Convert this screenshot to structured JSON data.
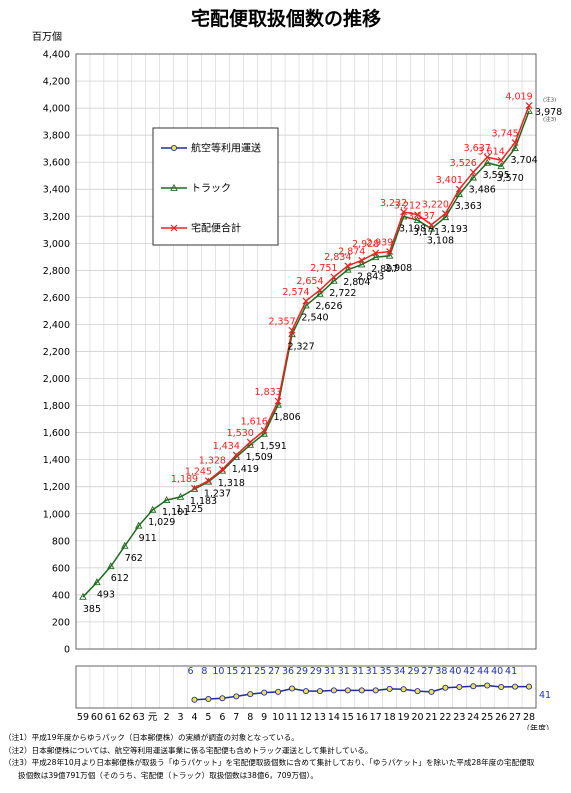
{
  "chart_data": {
    "type": "line",
    "title": "宅配便取扱個数の推移",
    "ylabel": "百万個",
    "xlabel": "（年度）",
    "ylim": [
      0,
      4400
    ],
    "y_ticks": [
      0,
      200,
      400,
      600,
      800,
      1000,
      1200,
      1400,
      1600,
      1800,
      2000,
      2200,
      2400,
      2600,
      2800,
      3000,
      3200,
      3400,
      3600,
      3800,
      4000,
      4200,
      4400
    ],
    "y_tick_labels": [
      "0",
      "200",
      "400",
      "600",
      "800",
      "1,000",
      "1,200",
      "1,400",
      "1,600",
      "1,800",
      "2,000",
      "2,200",
      "2,400",
      "2,600",
      "2,800",
      "3,000",
      "3,200",
      "3,400",
      "3,600",
      "3,800",
      "4,000",
      "4,200",
      "4,400"
    ],
    "categories": [
      "59",
      "60",
      "61",
      "62",
      "63",
      "元",
      "2",
      "3",
      "4",
      "5",
      "6",
      "7",
      "8",
      "9",
      "10",
      "11",
      "12",
      "13",
      "14",
      "15",
      "16",
      "17",
      "18",
      "19",
      "20",
      "21",
      "22",
      "23",
      "24",
      "25",
      "26",
      "27",
      "28"
    ],
    "grid": true,
    "legend_position": "top-left",
    "series": [
      {
        "name": "航空等利用運送",
        "color": "#1f2d9e",
        "marker": "circle",
        "values": [
          null,
          null,
          null,
          null,
          null,
          null,
          null,
          null,
          6,
          8,
          10,
          15,
          21,
          25,
          27,
          36,
          29,
          29,
          31,
          31,
          31,
          31,
          35,
          34,
          29,
          27,
          38,
          40,
          42,
          44,
          40,
          41,
          41
        ],
        "labels": [
          "",
          "",
          "",
          "",
          "",
          "",
          "",
          "",
          "6",
          "8",
          "10",
          "15",
          "21",
          "25",
          "27",
          "36",
          "29",
          "29",
          "31",
          "31",
          "31",
          "31",
          "35",
          "34",
          "29",
          "27",
          "38",
          "40",
          "42",
          "44",
          "40",
          "41",
          ""
        ]
      },
      {
        "name": "トラック",
        "color": "#1e6a1e",
        "marker": "triangle",
        "values": [
          385,
          493,
          612,
          762,
          911,
          1029,
          1101,
          1125,
          1183,
          1237,
          1318,
          1419,
          1509,
          1591,
          1806,
          2327,
          2540,
          2626,
          2722,
          2804,
          2843,
          2897,
          2908,
          3198,
          3171,
          3108,
          3193,
          3363,
          3486,
          3595,
          3570,
          3704,
          3978
        ],
        "labels": [
          "385",
          "493",
          "612",
          "762",
          "911",
          "1,029",
          "1,101",
          "1,125",
          "1,183",
          "1,237",
          "1,318",
          "1,419",
          "1,509",
          "1,591",
          "1,806",
          "2,327",
          "2,540",
          "2,626",
          "2,722",
          "2,804",
          "2,843",
          "2,897",
          "2,908",
          "3,198",
          "3,171",
          "3,108",
          "3,193",
          "3,363",
          "3,486",
          "3,595",
          "3,570",
          "3,704",
          "3,978"
        ]
      },
      {
        "name": "宅配便合計",
        "color": "#ee2222",
        "marker": "x",
        "values": [
          null,
          null,
          null,
          null,
          null,
          null,
          null,
          null,
          1189,
          1245,
          1328,
          1434,
          1530,
          1616,
          1833,
          2357,
          2574,
          2654,
          2751,
          2834,
          2874,
          2928,
          2939,
          3232,
          3212,
          3137,
          3220,
          3401,
          3526,
          3637,
          3614,
          3745,
          4019
        ],
        "labels": [
          "",
          "",
          "",
          "",
          "",
          "",
          "",
          "",
          "1,189",
          "1,245",
          "1,328",
          "1,434",
          "1,530",
          "1,616",
          "1,833",
          "2,357",
          "2,574",
          "2,654",
          "2,751",
          "2,834",
          "2,874",
          "2,928",
          "2,939",
          "3,232",
          "3,212",
          "3,137",
          "3,220",
          "3,401",
          "3,526",
          "3,637",
          "3,614",
          "3,745",
          "4,019"
        ]
      }
    ],
    "annotations": [
      "(注3)",
      "(注3)"
    ]
  },
  "notes": [
    "（注1）平成19年度からゆうパック（日本郵便株）の実績が調査の対象となっている。",
    "（注2）日本郵便株については、航空等利用運送事業に係る宅配便も含めトラック運送として集計している。",
    "（注3）平成28年10月より日本郵便株が取扱う「ゆうパケット」を宅配便取扱個数に含めて集計しており、「ゆうパケット」を除いた平成28年度の宅配便取",
    "扱個数は39億791万個（そのうち、宅配便（トラック）取扱個数は38億6，709万個）。"
  ]
}
